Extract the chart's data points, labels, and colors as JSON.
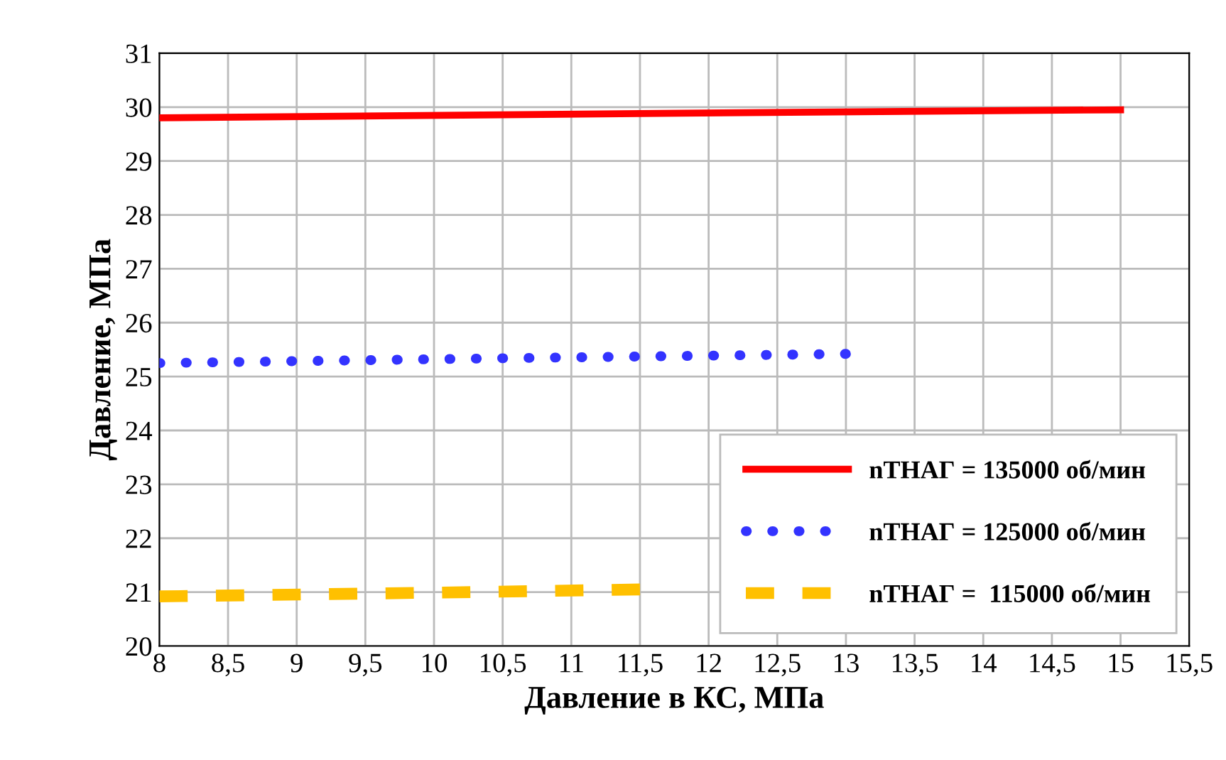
{
  "chart_data": {
    "type": "line",
    "xlabel": "Давление в КС, МПа",
    "ylabel": "Давление, МПа",
    "xlim": [
      8,
      15.5
    ],
    "xticks": [
      8,
      {
        "value": 8.5,
        "label": "8,5"
      },
      9,
      {
        "value": 9.5,
        "label": "9,5"
      },
      10,
      {
        "value": 10.5,
        "label": "10,5"
      },
      11,
      {
        "value": 11.5,
        "label": "11,5"
      },
      12,
      {
        "value": 12.5,
        "label": "12,5"
      },
      13,
      {
        "value": 13.5,
        "label": "13,5"
      },
      14,
      {
        "value": 14.5,
        "label": "14,5"
      },
      15,
      {
        "value": 15.5,
        "label": "15,5"
      }
    ],
    "ylim": [
      20,
      31
    ],
    "yticks": [
      20,
      21,
      22,
      23,
      24,
      25,
      26,
      27,
      28,
      29,
      30,
      31
    ],
    "grid": true,
    "legend": "bottom right",
    "marker": "none",
    "series": [
      {
        "name": "nТНАГ = 135000 об/мин",
        "color": "#ff0000",
        "line_style": "solid",
        "x": [
          8,
          11.5,
          15
        ],
        "values": [
          29.8,
          29.88,
          29.95
        ]
      },
      {
        "name": "nТНАГ = 125000 об/мин",
        "color": "#3333ff",
        "line_style": "dotted",
        "x": [
          8,
          10.5,
          13
        ],
        "values": [
          25.25,
          25.34,
          25.42
        ]
      },
      {
        "name": "nТНАГ =  115000 об/мин",
        "color": "#ffc000",
        "line_style": "dashed",
        "x": [
          8,
          10,
          11.5
        ],
        "values": [
          20.92,
          20.99,
          21.05
        ]
      }
    ]
  }
}
